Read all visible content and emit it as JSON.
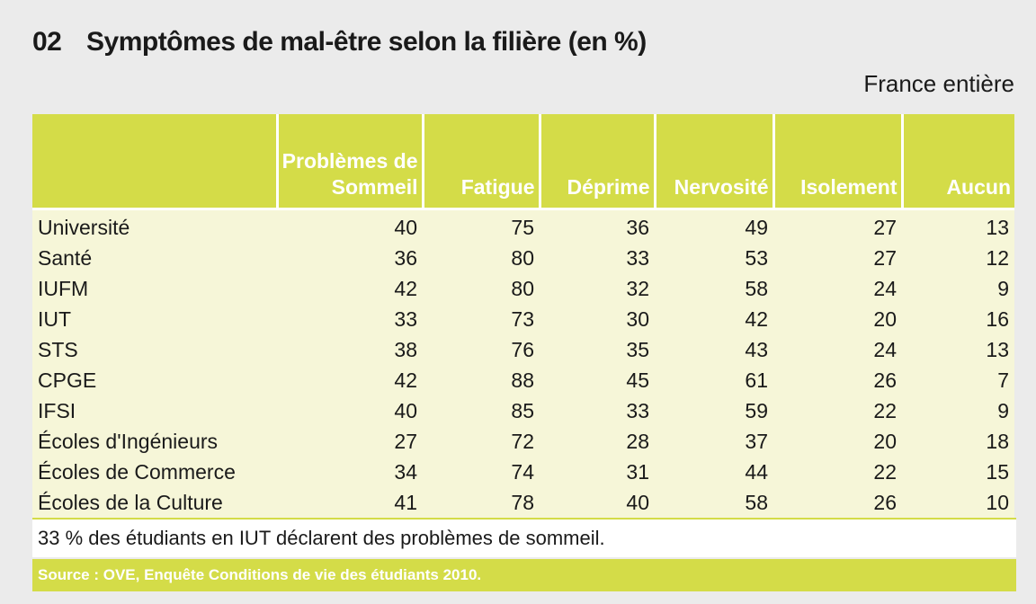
{
  "header": {
    "number": "02",
    "title": "Symptômes de mal-être selon la filière (en %)",
    "scope": "France entière"
  },
  "table": {
    "columns": [
      "Problèmes de Sommeil",
      "Fatigue",
      "Déprime",
      "Nervosité",
      "Isolement",
      "Aucun"
    ],
    "rows": [
      [
        "Université",
        40,
        75,
        36,
        49,
        27,
        13
      ],
      [
        "Santé",
        36,
        80,
        33,
        53,
        27,
        12
      ],
      [
        "IUFM",
        42,
        80,
        32,
        58,
        24,
        9
      ],
      [
        "IUT",
        33,
        73,
        30,
        42,
        20,
        16
      ],
      [
        "STS",
        38,
        76,
        35,
        43,
        24,
        13
      ],
      [
        "CPGE",
        42,
        88,
        45,
        61,
        26,
        7
      ],
      [
        "IFSI",
        40,
        85,
        33,
        59,
        22,
        9
      ],
      [
        "Écoles d'Ingénieurs",
        27,
        72,
        28,
        37,
        20,
        18
      ],
      [
        "Écoles de Commerce",
        34,
        74,
        31,
        44,
        22,
        15
      ],
      [
        "Écoles de la Culture",
        41,
        78,
        40,
        58,
        26,
        10
      ]
    ]
  },
  "note": "33 % des étudiants en IUT déclarent des problèmes de sommeil.",
  "source": "Source : OVE, Enquête Conditions de vie des étudiants 2010."
}
